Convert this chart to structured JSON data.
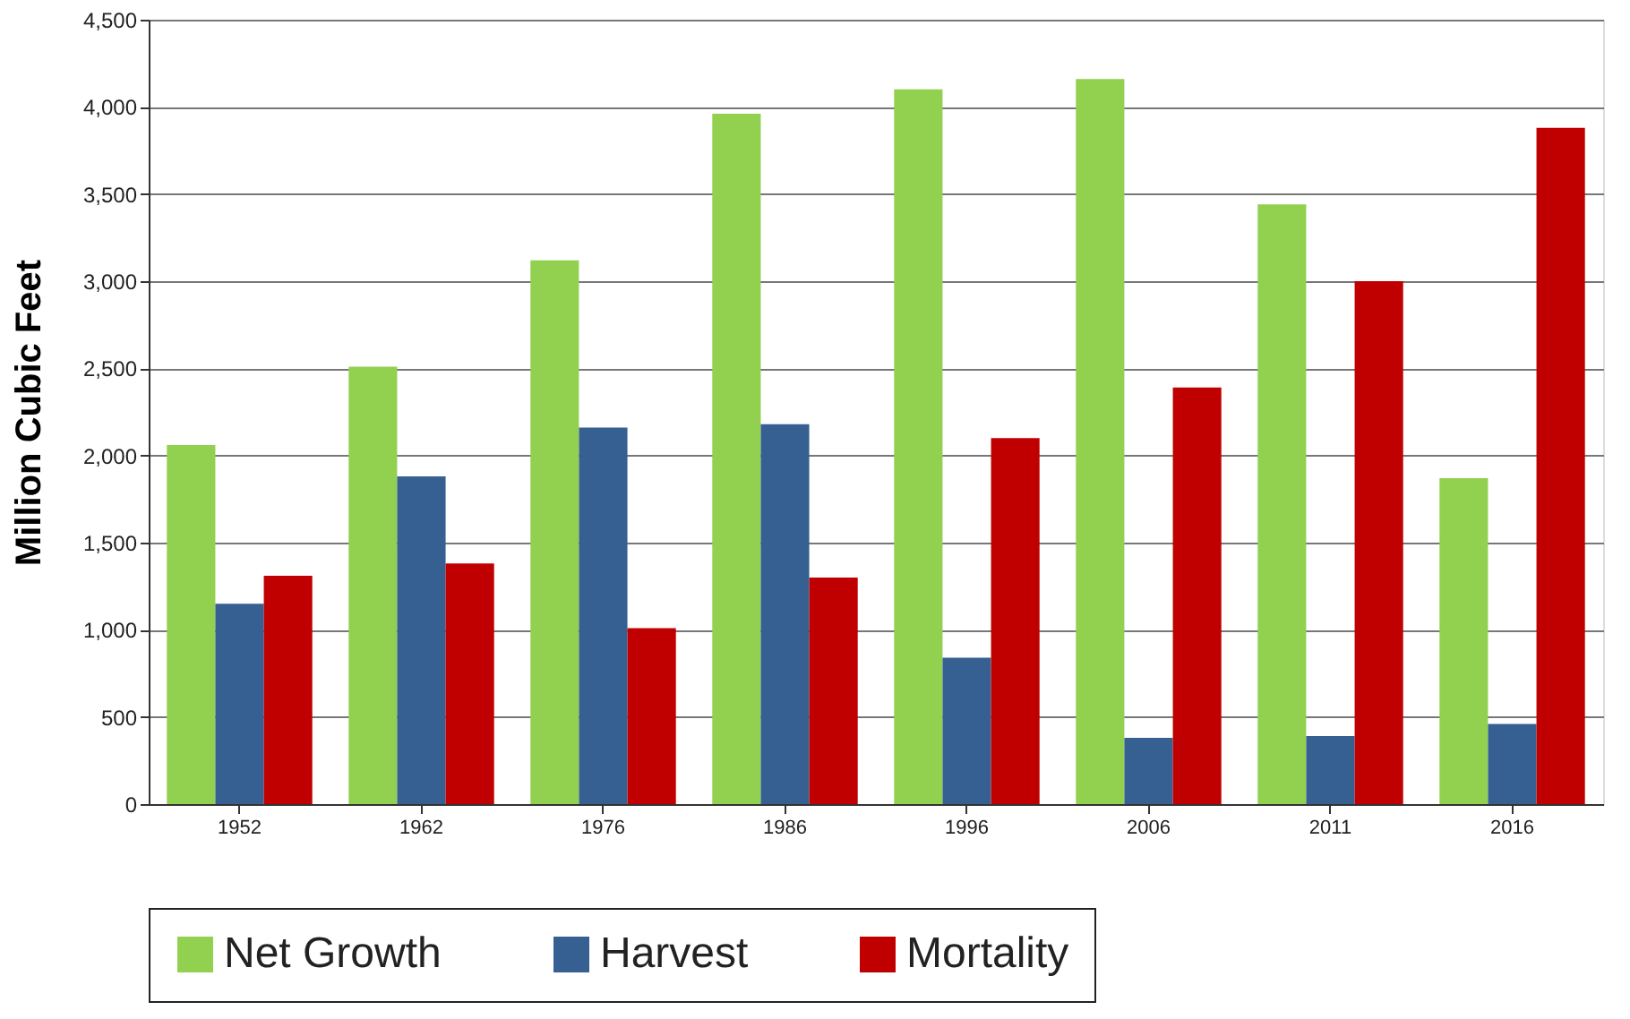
{
  "chart_data": {
    "type": "bar",
    "ylabel": "Million Cubic Feet",
    "categories": [
      "1952",
      "1962",
      "1976",
      "1986",
      "1996",
      "2006",
      "2011",
      "2016"
    ],
    "series": [
      {
        "name": "Net Growth",
        "color": "#92d050",
        "values": [
          2060,
          2510,
          3120,
          3960,
          4100,
          4160,
          3440,
          1870
        ]
      },
      {
        "name": "Harvest",
        "color": "#366092",
        "values": [
          1150,
          1880,
          2160,
          2180,
          840,
          380,
          390,
          460
        ]
      },
      {
        "name": "Mortality",
        "color": "#c00000",
        "values": [
          1310,
          1380,
          1010,
          1300,
          2100,
          2390,
          3000,
          3880
        ]
      }
    ],
    "ylim": [
      0,
      4500
    ],
    "yticks": [
      0,
      {
        "value": 500,
        "label": "500"
      },
      {
        "value": 1000,
        "label": "1,000"
      },
      {
        "value": 1500,
        "label": "1,500"
      },
      {
        "value": 2000,
        "label": "2,000"
      },
      {
        "value": 2500,
        "label": "2,500"
      },
      {
        "value": 3000,
        "label": "3,000"
      },
      {
        "value": 3500,
        "label": "3,500"
      },
      {
        "value": 4000,
        "label": "4,000"
      },
      {
        "value": 4500,
        "label": "4,500"
      }
    ],
    "grid": "y",
    "legend": "bottom"
  }
}
